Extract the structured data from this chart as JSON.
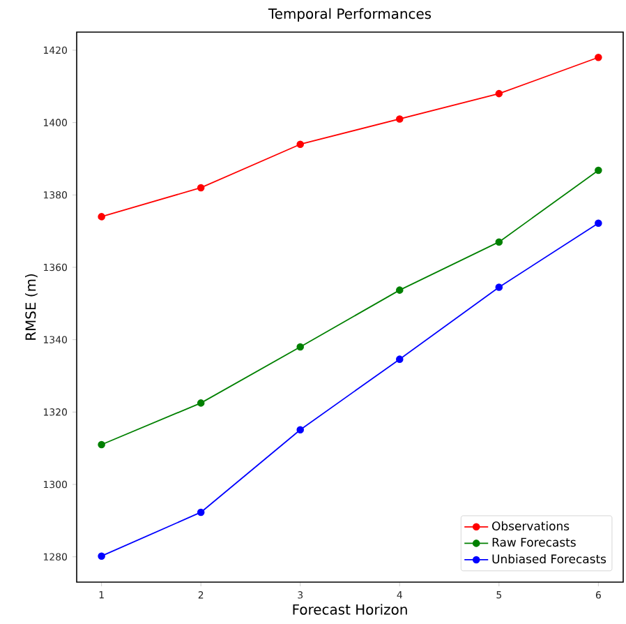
{
  "chart_data": {
    "type": "line",
    "title": "Temporal Performances",
    "xlabel": "Forecast Horizon",
    "ylabel": "RMSE (m)",
    "x": [
      1,
      2,
      3,
      4,
      5,
      6
    ],
    "series": [
      {
        "name": "Observations",
        "color": "#ff0000",
        "values": [
          1374,
          1382,
          1394,
          1401,
          1408,
          1418
        ]
      },
      {
        "name": "Raw Forecasts",
        "color": "#008000",
        "values": [
          1311,
          1322.5,
          1338,
          1353.7,
          1367,
          1386.8
        ]
      },
      {
        "name": "Unbiased Forecasts",
        "color": "#0000ff",
        "values": [
          1280.2,
          1292.3,
          1315.1,
          1334.6,
          1354.5,
          1372.2
        ]
      }
    ],
    "xlim": [
      0.75,
      6.25
    ],
    "ylim": [
      1273,
      1425
    ],
    "xticks": [
      1,
      2,
      3,
      4,
      5,
      6
    ],
    "yticks": [
      1280,
      1300,
      1320,
      1340,
      1360,
      1380,
      1400,
      1420
    ],
    "legend": "bottom right",
    "marker": "circle",
    "line_style": "solid"
  }
}
